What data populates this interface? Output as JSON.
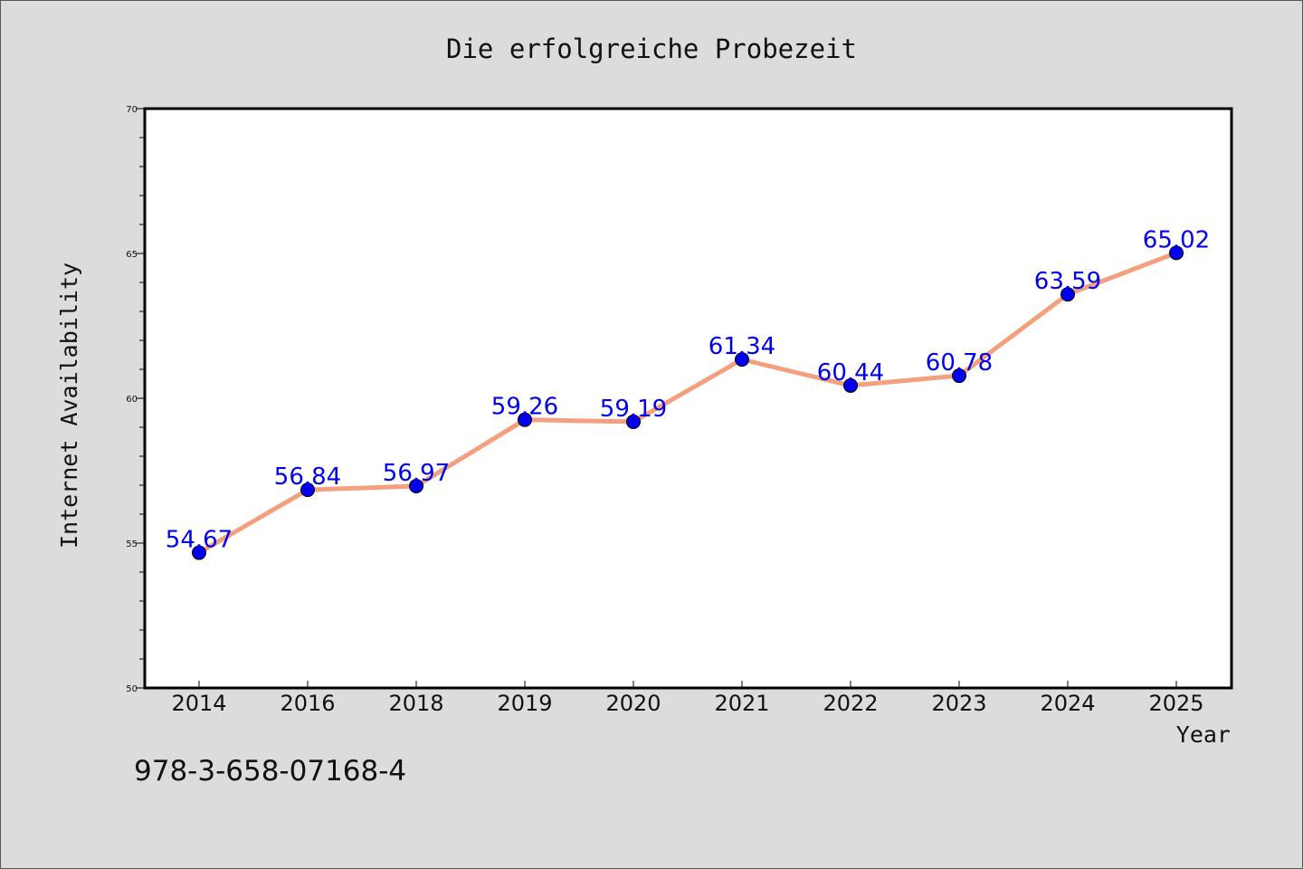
{
  "chart_data": {
    "type": "line",
    "title": "Die erfolgreiche Probezeit",
    "xlabel": "Year",
    "ylabel": "Internet Availability",
    "categories": [
      "2014",
      "2016",
      "2018",
      "2019",
      "2020",
      "2021",
      "2022",
      "2023",
      "2024",
      "2025"
    ],
    "series": [
      {
        "values": [
          54.67,
          56.84,
          56.97,
          59.26,
          59.19,
          61.34,
          60.44,
          60.78,
          63.59,
          65.02
        ],
        "labels": [
          "54.67",
          "56.84",
          "56.97",
          "59.26",
          "59.19",
          "61.34",
          "60.44",
          "60.78",
          "63.59",
          "65.02"
        ]
      }
    ],
    "ylim": [
      50,
      70
    ],
    "yticks": [
      "50",
      "55",
      "60",
      "65",
      "70"
    ],
    "grid": false,
    "line_color": "#f4a07e",
    "marker_color": "#0000ee",
    "label_color": "#0000ee"
  },
  "footer": {
    "isbn": "978-3-658-07168-4"
  }
}
